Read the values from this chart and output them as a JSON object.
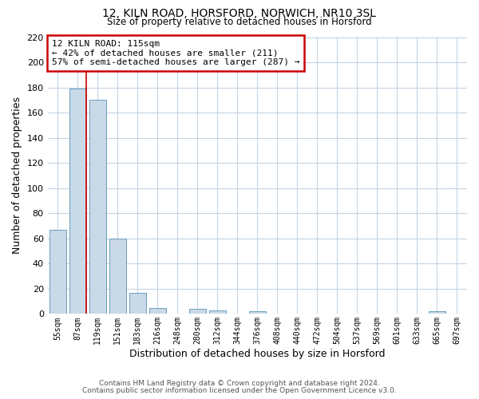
{
  "title": "12, KILN ROAD, HORSFORD, NORWICH, NR10 3SL",
  "subtitle": "Size of property relative to detached houses in Horsford",
  "xlabel": "Distribution of detached houses by size in Horsford",
  "ylabel": "Number of detached properties",
  "bar_labels": [
    "55sqm",
    "87sqm",
    "119sqm",
    "151sqm",
    "183sqm",
    "216sqm",
    "248sqm",
    "280sqm",
    "312sqm",
    "344sqm",
    "376sqm",
    "408sqm",
    "440sqm",
    "472sqm",
    "504sqm",
    "537sqm",
    "569sqm",
    "601sqm",
    "633sqm",
    "665sqm",
    "697sqm"
  ],
  "bar_values": [
    67,
    179,
    170,
    60,
    17,
    5,
    0,
    4,
    3,
    0,
    2,
    0,
    0,
    0,
    0,
    0,
    0,
    0,
    0,
    2,
    0
  ],
  "bar_color": "#c9d9e8",
  "bar_edge_color": "#6a9fc0",
  "ylim": [
    0,
    220
  ],
  "yticks": [
    0,
    20,
    40,
    60,
    80,
    100,
    120,
    140,
    160,
    180,
    200,
    220
  ],
  "property_line_color": "#cc0000",
  "annotation_title": "12 KILN ROAD: 115sqm",
  "annotation_line1": "← 42% of detached houses are smaller (211)",
  "annotation_line2": "57% of semi-detached houses are larger (287) →",
  "annotation_box_color": "#cc0000",
  "footnote1": "Contains HM Land Registry data © Crown copyright and database right 2024.",
  "footnote2": "Contains public sector information licensed under the Open Government Licence v3.0.",
  "background_color": "#ffffff",
  "grid_color": "#c5d5e5"
}
